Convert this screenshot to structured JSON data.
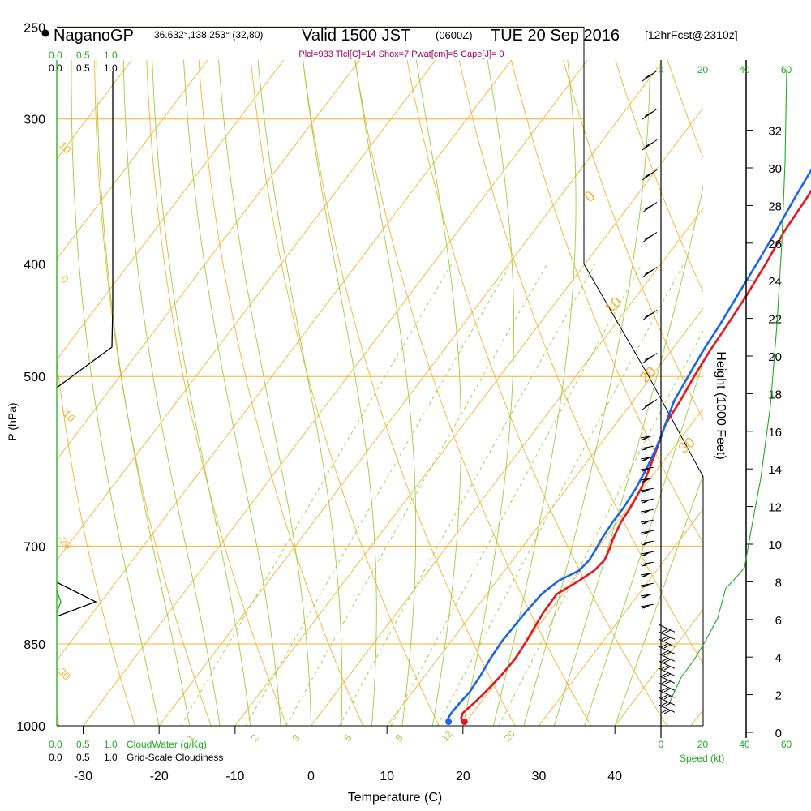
{
  "header": {
    "station": "NaganoGP",
    "location": "36.632°,138.253° (32,80)",
    "valid_main": "Valid 1500 JST",
    "valid_z": "(0600Z)",
    "valid_date": "TUE 20 Sep 2016",
    "forecast": "[12hrFcst@2310z]",
    "indices": "Plcl=933 Tlcl[C]=14 Shox=7 Pwat[cm]=5 Cape[J]= 0"
  },
  "colors": {
    "temperature": "#e8141e",
    "dewpoint": "#1a66e6",
    "isobar": "#f4b22e",
    "dry_adiabat": "#f4b22e",
    "moist_adiabat": "#9bcd3c",
    "mixing_ratio": "#9bcd3c",
    "green_label": "#22aa22",
    "indices_text": "#a0005a",
    "black": "#000000"
  },
  "chart_data": {
    "type": "line",
    "xlabel": "Temperature (C)",
    "ylabel": "P (hPa)",
    "right_axis_label": "Height (1000 Feet)",
    "x_ticks": [
      -30,
      -20,
      -10,
      0,
      10,
      20,
      30,
      40
    ],
    "pressure_ticks": [
      250,
      300,
      400,
      500,
      700,
      850,
      1000
    ],
    "pressure_range": [
      1000,
      250
    ],
    "height_ticks": [
      0,
      2,
      4,
      6,
      8,
      10,
      12,
      14,
      16,
      18,
      20,
      22,
      24,
      26,
      28,
      30,
      32
    ],
    "isotherm_labels": [
      "-10",
      "0",
      "10",
      "20",
      "30"
    ],
    "dry_adiabat_labels": [
      "10",
      "0",
      "-10",
      "-20",
      "-30"
    ],
    "mixing_ratio_labels": [
      "1",
      "2",
      "3",
      "5",
      "8",
      "12",
      "20"
    ],
    "series": [
      {
        "name": "temperature",
        "x": [
          19.8,
          19.0,
          18.7,
          19.2,
          19.6,
          20.0,
          20.2,
          19.9,
          19.3,
          19.2,
          20.8,
          21.8,
          22.1,
          21.7,
          21.1,
          20.5,
          20.3,
          19.8,
          18.9,
          17.8,
          16.6,
          16.2,
          15.6,
          15.1,
          14.8,
          14.4,
          13.8,
          13.0,
          12.6,
          11.9,
          10.4,
          9.6
        ],
        "p": [
          992,
          985,
          975,
          955,
          935,
          905,
          875,
          845,
          800,
          770,
          750,
          735,
          720,
          705,
          690,
          668,
          650,
          625,
          600,
          575,
          550,
          525,
          500,
          475,
          450,
          425,
          400,
          375,
          350,
          325,
          300,
          260
        ]
      },
      {
        "name": "dewpoint",
        "x": [
          17.7,
          17.3,
          17.2,
          17.3,
          17.5,
          17.3,
          16.9,
          16.7,
          16.9,
          17.2,
          18.1,
          19.8,
          20.1,
          19.9,
          19.6,
          19.4,
          19.4,
          19.1,
          18.5,
          17.7,
          16.6,
          15.4,
          14.8,
          14.2,
          13.8,
          13.2,
          12.6,
          11.9,
          11.0,
          10.2,
          9.3,
          8.4
        ],
        "p": [
          992,
          985,
          975,
          955,
          935,
          905,
          875,
          845,
          800,
          770,
          750,
          735,
          720,
          705,
          690,
          668,
          650,
          625,
          600,
          575,
          550,
          525,
          500,
          475,
          450,
          425,
          400,
          375,
          350,
          325,
          300,
          260
        ]
      }
    ],
    "wind_speed_axis": {
      "label": "Speed (kt)",
      "ticks": [
        0,
        20,
        40,
        60
      ]
    },
    "cloud_water_axis": {
      "label": "CloudWater (g/Kg)",
      "ticks": [
        "0.0",
        "0.5",
        "1.0"
      ]
    },
    "cloudiness_axis": {
      "label": "Grid-Scale Cloudiness",
      "ticks": [
        "0.0",
        "0.5",
        "1.0"
      ]
    }
  }
}
